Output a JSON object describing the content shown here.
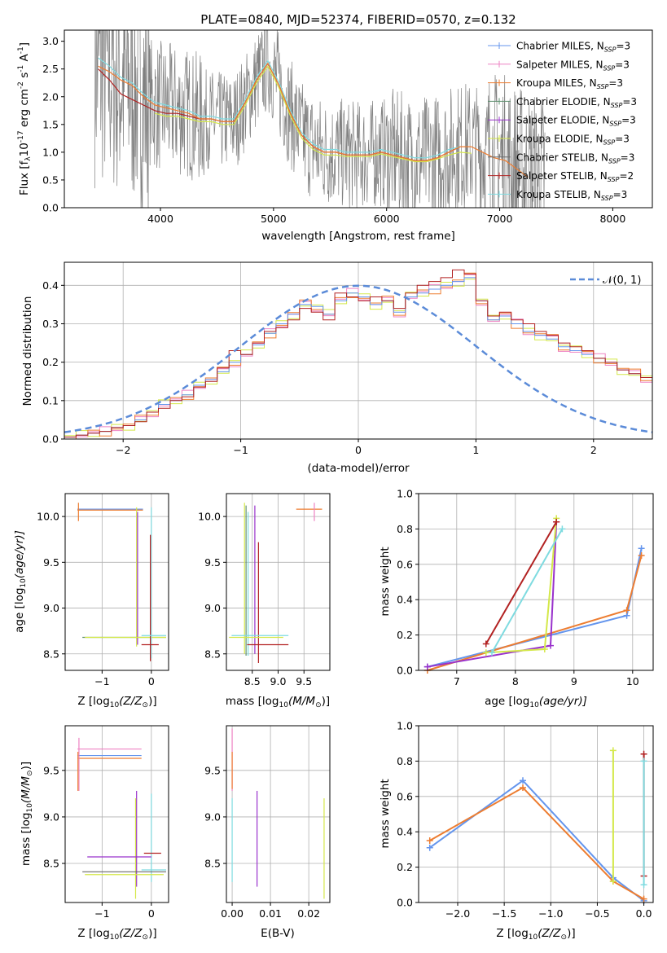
{
  "title": "PLATE=0840, MJD=52374, FIBERID=0570, z=0.132",
  "colors": {
    "Chabrier MILES": "#6495ed",
    "Salpeter MILES": "#ee82c3",
    "Kroupa MILES": "#ed7d31",
    "Chabrier ELODIE": "#5f8f6f",
    "Salpeter ELODIE": "#9932cc",
    "Kroupa ELODIE": "#d4e84a",
    "Chabrier STELIB": "#6b6b6b",
    "Salpeter STELIB": "#b22222",
    "Kroupa STELIB": "#7fdbe0",
    "data": "#808080",
    "normal": "#5b8bd8"
  },
  "panels": {
    "spectrum": {
      "xlabel": "wavelength [Angstrom, rest frame]",
      "ylabel": "Flux [f",
      "ylabel_sub": "λ",
      "ylabel_mid": "10",
      "ylabel_sup1": "-17",
      "ylabel_tail": " erg cm",
      "ylabel_sup2": "-2",
      "ylabel_tail2": " s",
      "ylabel_sup3": "-1",
      "ylabel_tail3": " A",
      "ylabel_sup4": "-1",
      "ylabel_end": "]",
      "xticks": [
        "4000",
        "5000",
        "6000",
        "7000",
        "8000"
      ],
      "yticks": [
        "0.0",
        "0.5",
        "1.0",
        "1.5",
        "2.0",
        "2.5",
        "3.0"
      ],
      "legend": [
        {
          "model": "Chabrier MILES",
          "n": "3"
        },
        {
          "model": "Salpeter MILES",
          "n": "3"
        },
        {
          "model": "Kroupa MILES",
          "n": "3"
        },
        {
          "model": "Chabrier ELODIE",
          "n": "3"
        },
        {
          "model": "Salpeter ELODIE",
          "n": "3"
        },
        {
          "model": "Kroupa ELODIE",
          "n": "3"
        },
        {
          "model": "Chabrier STELIB",
          "n": "3"
        },
        {
          "model": "Salpeter STELIB",
          "n": "2"
        },
        {
          "model": "Kroupa STELIB",
          "n": "3"
        }
      ],
      "legend_prefix": "N",
      "legend_sub": "SSP"
    },
    "residuals": {
      "xlabel": "(data-model)/error",
      "ylabel": "Normed distribution",
      "xticks": [
        "−2",
        "−1",
        "0",
        "1",
        "2"
      ],
      "yticks": [
        "0.0",
        "0.1",
        "0.2",
        "0.3",
        "0.4"
      ],
      "legend_label": "𝒩(0, 1)"
    },
    "age_Z": {
      "xlabel_pre": "Z [log",
      "xlabel_sub": "10",
      "xlabel_post": "(Z/Z",
      "xlabel_sun": "⊙",
      "xlabel_end": ")]",
      "ylabel_pre": "age  [log",
      "ylabel_sub": "10",
      "ylabel_post": "(age/yr)]",
      "xticks": [
        "−1",
        "0"
      ],
      "yticks": [
        "8.5",
        "9.0",
        "9.5",
        "10.0"
      ]
    },
    "age_mass": {
      "xlabel_pre": "mass [log",
      "xlabel_sub": "10",
      "xlabel_post": "(M/M",
      "xlabel_sun": "⊙",
      "xlabel_end": ")]",
      "xticks": [
        "8.5",
        "9.0",
        "9.5"
      ],
      "yticks": [
        "8.5",
        "9.0",
        "9.5",
        "10.0"
      ]
    },
    "weight_age": {
      "xlabel_pre": "age  [log",
      "xlabel_sub": "10",
      "xlabel_post": "(age/yr)]",
      "ylabel": "mass weight",
      "xticks": [
        "7",
        "8",
        "9",
        "10"
      ],
      "yticks": [
        "0.0",
        "0.2",
        "0.4",
        "0.6",
        "0.8",
        "1.0"
      ]
    },
    "mass_Z": {
      "xlabel_pre": "Z [log",
      "xlabel_sub": "10",
      "xlabel_post": "(Z/Z",
      "xlabel_sun": "⊙",
      "xlabel_end": ")]",
      "ylabel_pre": "mass [log",
      "ylabel_sub": "10",
      "ylabel_post": "(M/M",
      "ylabel_sun": "⊙",
      "ylabel_end": ")]",
      "xticks": [
        "−1",
        "0"
      ],
      "yticks": [
        "8.5",
        "9.0",
        "9.5"
      ]
    },
    "mass_ebv": {
      "xlabel": "E(B-V)",
      "xticks": [
        "0.00",
        "0.01",
        "0.02"
      ],
      "yticks": [
        "8.5",
        "9.0",
        "9.5"
      ]
    },
    "weight_Z": {
      "xlabel_pre": "Z [log",
      "xlabel_sub": "10",
      "xlabel_post": "(Z/Z",
      "xlabel_sun": "⊙",
      "xlabel_end": ")]",
      "ylabel": "mass weight",
      "xticks": [
        "−2.0",
        "−1.5",
        "−1.0",
        "−0.5",
        "0.0"
      ],
      "yticks": [
        "0.0",
        "0.2",
        "0.4",
        "0.6",
        "0.8",
        "1.0"
      ]
    }
  },
  "chart_data": [
    {
      "type": "line",
      "title": "PLATE=0840, MJD=52374, FIBERID=0570, z=0.132",
      "xlabel": "wavelength [Angstrom, rest frame]",
      "ylabel": "Flux [fλ10^-17 erg cm^-2 s^-1 A^-1]",
      "xlim": [
        3150,
        8350
      ],
      "ylim": [
        0,
        3.2
      ],
      "model_x": [
        3450,
        3550,
        3650,
        3750,
        3850,
        3950,
        4050,
        4150,
        4250,
        4350,
        4450,
        4550,
        4650,
        4750,
        4850,
        4950,
        5050,
        5150,
        5250,
        5350,
        5450,
        5550,
        5650,
        5750,
        5850,
        5950,
        6050,
        6150,
        6250,
        6350,
        6450,
        6550,
        6650,
        6750,
        6850,
        6950,
        7050,
        7150,
        7250
      ],
      "series": [
        {
          "name": "Kroupa MILES",
          "values": [
            2.55,
            2.45,
            2.3,
            2.2,
            2.0,
            1.85,
            1.8,
            1.75,
            1.7,
            1.6,
            1.6,
            1.55,
            1.55,
            1.9,
            2.3,
            2.6,
            2.2,
            1.7,
            1.3,
            1.1,
            1.0,
            1.0,
            0.95,
            0.95,
            0.95,
            1.0,
            0.95,
            0.9,
            0.85,
            0.85,
            0.9,
            1.0,
            1.1,
            1.1,
            1.0,
            0.9,
            0.85,
            0.7,
            0.55
          ]
        },
        {
          "name": "Kroupa STELIB",
          "values": [
            2.7,
            2.55,
            2.35,
            2.25,
            2.05,
            1.9,
            1.85,
            1.8,
            1.75,
            1.65,
            1.65,
            1.6,
            1.6,
            1.95,
            2.35,
            2.65,
            2.25,
            1.75,
            1.35,
            1.15,
            1.05,
            1.05,
            1.0,
            1.0,
            1.0,
            1.05,
            1.0,
            0.95,
            0.9,
            0.9,
            0.95,
            1.05,
            1.1
          ]
        },
        {
          "name": "Salpeter STELIB",
          "values": [
            2.5,
            2.3,
            2.05,
            1.95,
            1.85,
            1.75,
            1.7,
            1.7,
            1.65,
            1.6,
            1.6,
            1.55,
            1.55,
            1.9,
            2.3,
            2.6,
            2.2,
            1.7,
            1.3,
            1.1,
            1.0,
            1.0,
            0.95,
            0.95,
            0.95,
            1.0,
            0.95,
            0.9,
            0.85,
            0.85,
            0.9,
            1.0,
            1.1
          ]
        },
        {
          "name": "Kroupa ELODIE",
          "values": [
            null,
            null,
            null,
            null,
            null,
            1.7,
            1.65,
            1.65,
            1.6,
            1.55,
            1.55,
            1.5,
            1.5,
            1.85,
            2.25,
            2.55,
            2.15,
            1.65,
            1.25,
            1.05,
            0.95,
            0.95,
            0.92,
            0.92,
            0.92,
            0.97,
            0.92,
            0.88,
            0.83,
            0.83,
            0.88,
            0.95,
            1.0,
            0.98
          ]
        }
      ]
    },
    {
      "type": "bar",
      "title": "",
      "xlabel": "(data-model)/error",
      "ylabel": "Normed distribution",
      "xlim": [
        -2.5,
        2.5
      ],
      "ylim": [
        0,
        0.46
      ],
      "bin_edges_start": -2.5,
      "bin_width": 0.1,
      "series": [
        {
          "name": "Chabrier MILES",
          "values": [
            0.005,
            0.01,
            0.015,
            0.02,
            0.03,
            0.035,
            0.05,
            0.07,
            0.09,
            0.1,
            0.115,
            0.14,
            0.155,
            0.175,
            0.2,
            0.22,
            0.245,
            0.275,
            0.3,
            0.325,
            0.35,
            0.345,
            0.325,
            0.36,
            0.38,
            0.37,
            0.35,
            0.36,
            0.33,
            0.37,
            0.38,
            0.39,
            0.4,
            0.41,
            0.42,
            0.36,
            0.31,
            0.32,
            0.3,
            0.28,
            0.27,
            0.26,
            0.24,
            0.23,
            0.22,
            0.21,
            0.2,
            0.18,
            0.17,
            0.16
          ]
        },
        {
          "name": "Salpeter STELIB",
          "values": [
            0.005,
            0.01,
            0.015,
            0.02,
            0.03,
            0.035,
            0.045,
            0.07,
            0.08,
            0.1,
            0.11,
            0.135,
            0.15,
            0.185,
            0.23,
            0.22,
            0.25,
            0.28,
            0.29,
            0.31,
            0.34,
            0.33,
            0.31,
            0.38,
            0.37,
            0.36,
            0.37,
            0.36,
            0.34,
            0.38,
            0.4,
            0.41,
            0.42,
            0.44,
            0.43,
            0.36,
            0.32,
            0.33,
            0.31,
            0.3,
            0.28,
            0.27,
            0.25,
            0.24,
            0.23,
            0.21,
            0.2,
            0.18,
            0.17,
            0.16
          ]
        }
      ],
      "reference": {
        "name": "𝒩(0, 1)",
        "mean": 0,
        "sigma": 1
      }
    },
    {
      "type": "scatter",
      "xlabel": "Z [log10(Z/Z⊙)]",
      "ylabel": "age [log10(age/yr)]",
      "xlim": [
        -1.75,
        0.35
      ],
      "ylim": [
        8.32,
        10.25
      ]
    },
    {
      "type": "scatter",
      "xlabel": "mass [log10(M/M⊙)]",
      "xlim": [
        8.0,
        10.0
      ],
      "ylim": [
        8.32,
        10.25
      ]
    },
    {
      "type": "line",
      "xlabel": "age [log10(age/yr)]",
      "ylabel": "mass weight",
      "xlim": [
        6.35,
        10.35
      ],
      "ylim": [
        0,
        1.0
      ],
      "series": [
        {
          "name": "Chabrier MILES",
          "x": [
            6.5,
            9.9,
            10.15
          ],
          "y": [
            0.02,
            0.31,
            0.69
          ]
        },
        {
          "name": "Kroupa MILES",
          "x": [
            6.5,
            9.9,
            10.15
          ],
          "y": [
            0.0,
            0.34,
            0.65
          ]
        },
        {
          "name": "Salpeter ELODIE",
          "x": [
            6.5,
            8.6,
            8.7
          ],
          "y": [
            0.02,
            0.14,
            0.84
          ]
        },
        {
          "name": "Kroupa ELODIE",
          "x": [
            7.5,
            8.5,
            8.7
          ],
          "y": [
            0.1,
            0.12,
            0.86
          ]
        },
        {
          "name": "Salpeter STELIB",
          "x": [
            7.5,
            8.7
          ],
          "y": [
            0.15,
            0.84
          ]
        },
        {
          "name": "Kroupa STELIB",
          "x": [
            7.6,
            8.8
          ],
          "y": [
            0.1,
            0.8
          ]
        }
      ]
    },
    {
      "type": "scatter",
      "xlabel": "Z [log10(Z/Z⊙)]",
      "ylabel": "mass [log10(M/M⊙)]",
      "xlim": [
        -1.75,
        0.35
      ],
      "ylim": [
        8.08,
        9.98
      ]
    },
    {
      "type": "scatter",
      "xlabel": "E(B-V)",
      "xlim": [
        -0.0015,
        0.0255
      ],
      "ylim": [
        8.08,
        9.98
      ]
    },
    {
      "type": "line",
      "xlabel": "Z [log10(Z/Z⊙)]",
      "ylabel": "mass weight",
      "xlim": [
        -2.42,
        0.1
      ],
      "ylim": [
        0,
        1.0
      ],
      "series": [
        {
          "name": "Chabrier MILES",
          "x": [
            -2.3,
            -1.3,
            -0.33,
            0.0
          ],
          "y": [
            0.31,
            0.69,
            0.14,
            0.01
          ]
        },
        {
          "name": "Kroupa MILES",
          "x": [
            -2.3,
            -1.3,
            -0.33,
            0.0
          ],
          "y": [
            0.35,
            0.65,
            0.12,
            0.02
          ]
        },
        {
          "name": "Kroupa ELODIE",
          "x": [
            -0.33,
            -0.33
          ],
          "y": [
            0.86,
            0.12
          ]
        },
        {
          "name": "Salpeter STELIB",
          "x": [
            0.0,
            0.0
          ],
          "y": [
            0.84,
            0.15
          ]
        },
        {
          "name": "Kroupa STELIB",
          "x": [
            0.0,
            0.0
          ],
          "y": [
            0.8,
            0.1
          ]
        }
      ]
    }
  ]
}
